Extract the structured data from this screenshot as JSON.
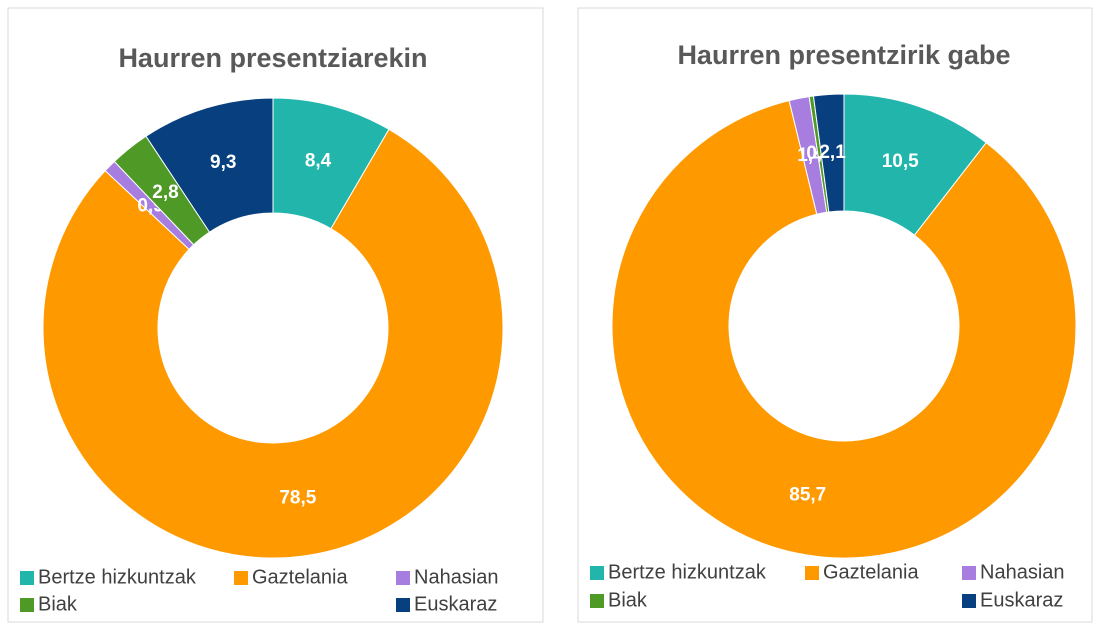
{
  "chart_data": [
    {
      "type": "pie",
      "title": "Haurren presentziarekin",
      "categories": [
        "Bertze hizkuntzak",
        "Gaztelania",
        "Nahasian",
        "Biak",
        "Euskaraz"
      ],
      "values": [
        8.4,
        78.5,
        0.9,
        2.8,
        9.3
      ],
      "value_labels": [
        "8,4",
        "78,5",
        "0,9",
        "2,8",
        "9,3"
      ],
      "colors": [
        "#22b5ac",
        "#ff9900",
        "#a77de0",
        "#4f9a26",
        "#083f7e"
      ]
    },
    {
      "type": "pie",
      "title": "Haurren presentzirik gabe",
      "categories": [
        "Bertze hizkuntzak",
        "Gaztelania",
        "Nahasian",
        "Biak",
        "Euskaraz"
      ],
      "values": [
        10.5,
        85.7,
        1.4,
        0.3,
        2.1
      ],
      "value_labels": [
        "10,5",
        "85,7",
        "1,4",
        "0,3",
        "2,1"
      ],
      "colors": [
        "#22b5ac",
        "#ff9900",
        "#a77de0",
        "#4f9a26",
        "#083f7e"
      ]
    }
  ]
}
